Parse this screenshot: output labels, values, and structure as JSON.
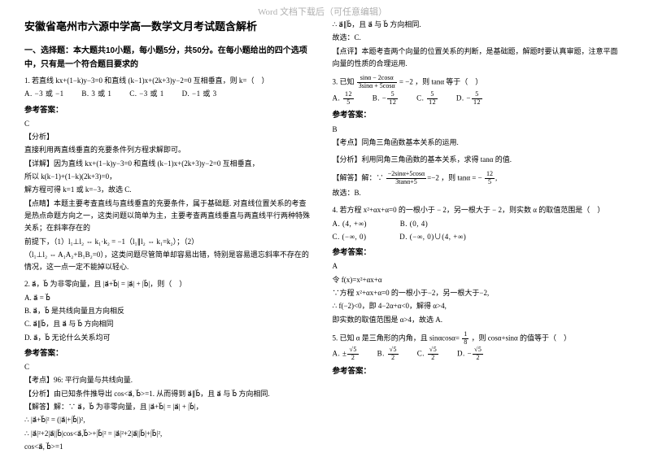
{
  "watermark": "Word 文档下载后（可任意编辑）",
  "title": "安徽省亳州市六源中学高一数学文月考试题含解析",
  "section1_header": "一、选择题：本大题共10小题，每小题5分，共50分。在每小题给出的四个选项中，只有是一个符合题目要求的",
  "q1": {
    "stem": "1. 若直线 kx+(1−k)y−3=0 和直线 (k−1)x+(2k+3)y−2=0 互相垂直，则 k=（　）",
    "optA": "A.  −3 或 −1",
    "optB": "B.  3 或 1",
    "optC": "C.  −3 或 1",
    "optD": "D.  −1 或 3",
    "ans_head": "参考答案：",
    "ans": "C",
    "analysis_head": "【分析】",
    "analysis1": "直接利用两直线垂直的充要条件列方程求解即可。",
    "detail_head": "【详解】因为直线 kx+(1−k)y−3=0 和直线 (k−1)x+(2k+3)y−2=0 互相垂直，",
    "detail1": "所以 k(k−1)+(1−k)(2k+3)=0，",
    "detail2": "解方程可得 k=1 或 k=−3，故选 C.",
    "point_head": "【点睛】本题主要考查直线与直线垂直的充要条件，属于基础题. 对直线位置关系的考查是热点命题方向之一，这类问题以简单为主，主要考查两直线垂直与两直线平行两种特殊关系；在斜率存在的",
    "point2": "前提下，（1）l₁⊥l₂ ⇔ k₁·k₂ = −1（l₁∥l₂ ⇔ k₁=k₂）；（2）",
    "point3": "（l₁⊥l₂ ⇔ A₁A₂+B₁B₂=0），这类问题尽管简单却容易出错，特别是容易遗忘斜率不存在的情况，这一点一定不能掉以轻心."
  },
  "q2": {
    "stem": "2. a⃗，b⃗ 为非零向量，且 |a⃗+b⃗| = |a⃗| + |b⃗|，则（　）",
    "optA": "A.  a⃗ = b⃗",
    "optB": "B.  a⃗，b⃗ 是共线向量且方向相反",
    "optC": "C.  a⃗∥b⃗，且 a⃗ 与 b⃗ 方向相同",
    "optD": "D.  a⃗，b⃗ 无论什么关系均可",
    "ans_head": "参考答案：",
    "ans": "C",
    "kp": "【考点】96: 平行向量与共线向量.",
    "fx": "【分析】由已知条件推导出 cos<a⃗, b⃗>=1.  从而得到 a⃗∥b⃗，且 a⃗ 与 b⃗ 方向相同.",
    "solve1": "【解答】解：∵ a⃗，b⃗ 为非零向量，且 |a⃗+b⃗| = |a⃗| + |b⃗|，",
    "solve2": "∴ |a⃗+b⃗|² = (|a⃗|+|b⃗|)²,",
    "solve3": "∴ |a⃗|²+2|a⃗||b⃗|cos<a⃗,b⃗>+|b⃗|² = |a⃗|²+2|a⃗||b⃗|+|b⃗|²,",
    "solve4": "cos<a⃗, b⃗>=1"
  },
  "right": {
    "cont1": "∴ a⃗∥b⃗，且 a⃗ 与 b⃗ 方向相同.",
    "cont2": "故选：C.",
    "cont3": "【点评】本题考查两个向量的位置关系的判断，是基础题，解题时要认真审题，注意平面向量的性质的合理运用.",
    "q3stem_a": "3. 已知",
    "q3stem_b": "，则 tanα 等于（　）",
    "q3frac_num": "sinα − 2cosα",
    "q3frac_den": "3sinα + 5cosα",
    "q3eq": "= −2",
    "q3optA_n": "12",
    "q3optA_d": "5",
    "q3optB_n": "5",
    "q3optB_d": "12",
    "q3optC_n": "5",
    "q3optC_d": "12",
    "q3optD_n": "5",
    "q3optD_d": "12",
    "q3A": "A. ",
    "q3B": "B.  −",
    "q3C": "C. ",
    "q3D": "D.  −",
    "q3ans_head": "参考答案：",
    "q3ans": "B",
    "q3kp": "【考点】同角三角函数基本关系的运用.",
    "q3fx": "【分析】利用同角三角函数的基本关系，求得 tanα 的值.",
    "q3solve": "【解答】解：∵",
    "q3solve2": "，则 tanα = −",
    "q3solve3": "故选：B.",
    "q4stem": "4. 若方程 x²+αx+α=0 的一根小于 − 2，另一根大于 − 2，则实数 α 的取值范围是（　）",
    "q4A": "A.  (4, +∞)",
    "q4B": "B.  (0, 4)",
    "q4C": "C.  (−∞, 0)",
    "q4D": "D.  (−∞, 0)∪(4, +∞)",
    "q4ans_head": "参考答案：",
    "q4ans": "A",
    "q4s1": "令 f(x)=x²+αx+α",
    "q4s2": "∵方程 x²+αx+α=0 的一根小于−2，另一根大于−2,",
    "q4s3": "∴ f(−2)<0，即 4−2α+α<0，解得 α>4,",
    "q4s4": "即实数的取值范围是 α>4，故选 A.",
    "q5stem_a": "5. 已知 α 是三角形的内角，且 sinαcosα=",
    "q5stem_b": "，则 cosα+sinα 的值等于（　）",
    "q5frac_n": "1",
    "q5frac_d": "8",
    "q5A": "A.  ±",
    "q5B": "B.  ",
    "q5C": "C.  ",
    "q5D": "D.  −",
    "q5v_n": "√5",
    "q5v_d": "2",
    "q5ans_head": "参考答案："
  }
}
